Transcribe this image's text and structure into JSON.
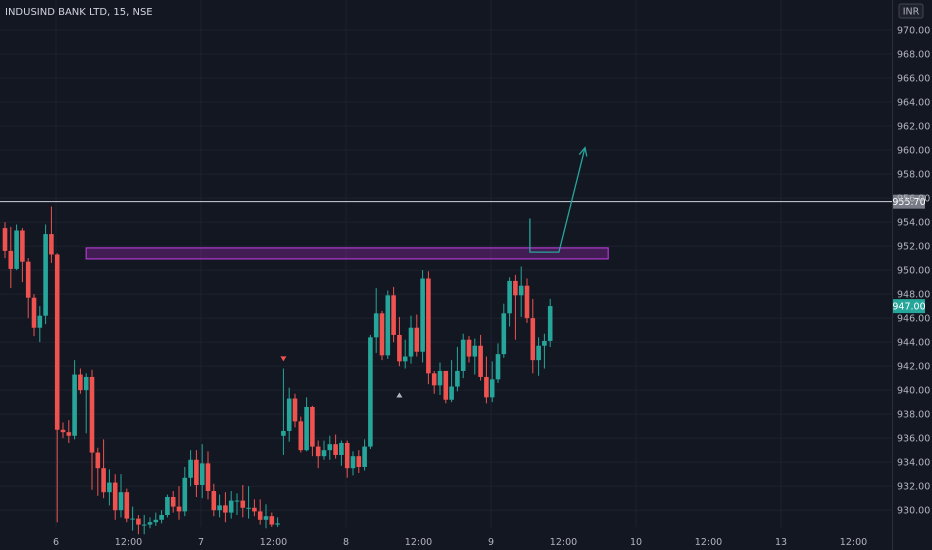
{
  "chart_data": {
    "type": "candlestick",
    "title": "INDUSIND BANK LTD, 15, NSE",
    "currency": "INR",
    "colors": {
      "background": "#131722",
      "up": "#26a69a",
      "down": "#ef5350",
      "grid": "#1e222d",
      "axis_text": "#b2b5be",
      "current_price_bg": "#26a69a",
      "horizontal_line": "#d1d4dc",
      "zone": "#9c27b0",
      "projection": "#26a69a"
    },
    "ylim": [
      928.6,
      972.5
    ],
    "y_ticks": [
      "930.00",
      "932.00",
      "934.00",
      "936.00",
      "938.00",
      "940.00",
      "942.00",
      "944.00",
      "946.00",
      "948.00",
      "950.00",
      "952.00",
      "954.00",
      "956.00",
      "958.00",
      "960.00",
      "962.00",
      "964.00",
      "966.00",
      "968.00",
      "970.00"
    ],
    "x_ticks": [
      "6",
      "12:00",
      "7",
      "12:00",
      "8",
      "12:00",
      "9",
      "12:00",
      "10",
      "12:00",
      "13",
      "12:00"
    ],
    "x_ticks_major": [
      "6",
      "7",
      "8",
      "9",
      "10",
      "13"
    ],
    "sessions": 6.0,
    "bars_per_session": 25,
    "horizontal_line_price": 955.7,
    "horizontal_line_label": "955.70",
    "current_price": 947.0,
    "current_price_label": "947.00",
    "zone": {
      "low": 951.1,
      "high": 951.6,
      "from_bar": 14,
      "to_bar": 104
    },
    "projection": [
      [
        90.5,
        954.3
      ],
      [
        90.5,
        951.5
      ],
      [
        95.5,
        951.5
      ],
      [
        100,
        960.2
      ]
    ],
    "markers": [
      {
        "bar": 48,
        "price": 942.4,
        "shape": "down-triangle",
        "color": "#ef5350"
      },
      {
        "bar": 68,
        "price": 939.8,
        "shape": "up-triangle",
        "color": "#b2b5be"
      }
    ],
    "candles": [
      [
        0,
        953.5,
        954.0,
        951.0,
        951.6
      ],
      [
        1,
        951.6,
        953.6,
        948.5,
        950.1
      ],
      [
        2,
        950.1,
        953.8,
        950.0,
        953.3
      ],
      [
        3,
        953.3,
        953.5,
        949.0,
        950.7
      ],
      [
        4,
        950.7,
        951.0,
        946.0,
        947.7
      ],
      [
        5,
        947.7,
        948.0,
        944.5,
        945.2
      ],
      [
        6,
        945.2,
        947.0,
        944.0,
        946.2
      ],
      [
        7,
        946.2,
        953.8,
        945.5,
        953.0
      ],
      [
        8,
        953.0,
        955.3,
        950.6,
        951.3
      ],
      [
        9,
        951.3,
        951.4,
        929.0,
        936.7
      ],
      [
        10,
        936.7,
        937.3,
        936.0,
        936.5
      ],
      [
        11,
        936.5,
        937.5,
        935.6,
        936.2
      ],
      [
        12,
        936.2,
        942.5,
        935.9,
        941.3
      ],
      [
        13,
        941.3,
        941.8,
        939.7,
        940.0
      ],
      [
        14,
        940.0,
        941.4,
        936.4,
        941.1
      ],
      [
        15,
        941.1,
        941.7,
        931.7,
        934.8
      ],
      [
        16,
        934.8,
        935.2,
        931.2,
        933.5
      ],
      [
        17,
        933.5,
        935.9,
        931.0,
        931.5
      ],
      [
        18,
        931.5,
        933.4,
        930.4,
        932.3
      ],
      [
        19,
        932.3,
        933.0,
        929.2,
        930.0
      ],
      [
        20,
        930.0,
        933.0,
        929.4,
        931.5
      ],
      [
        21,
        931.5,
        931.8,
        929.0,
        929.3
      ],
      [
        22,
        929.3,
        930.3,
        928.3,
        929.3
      ],
      [
        23,
        929.3,
        929.6,
        928.0,
        928.8
      ],
      [
        24,
        928.8,
        929.6,
        928.0,
        928.8
      ],
      [
        25,
        928.8,
        929.4,
        928.5,
        929.0
      ],
      [
        26,
        929.0,
        929.8,
        928.7,
        929.2
      ],
      [
        27,
        929.2,
        930.0,
        928.9,
        929.6
      ],
      [
        28,
        929.6,
        931.3,
        929.4,
        931.1
      ],
      [
        29,
        931.1,
        931.6,
        929.8,
        930.3
      ],
      [
        30,
        930.3,
        932.0,
        929.2,
        929.9
      ],
      [
        31,
        929.9,
        933.6,
        929.5,
        932.7
      ],
      [
        32,
        932.7,
        935.0,
        932.0,
        934.2
      ],
      [
        33,
        934.2,
        935.0,
        931.1,
        932.1
      ],
      [
        34,
        932.1,
        935.5,
        931.0,
        933.9
      ],
      [
        35,
        933.9,
        934.9,
        930.9,
        931.6
      ],
      [
        36,
        931.6,
        932.2,
        929.5,
        930.0
      ],
      [
        37,
        930.0,
        931.3,
        929.4,
        930.4
      ],
      [
        38,
        930.4,
        931.5,
        929.0,
        929.8
      ],
      [
        39,
        929.8,
        931.6,
        929.3,
        930.8
      ],
      [
        40,
        930.8,
        931.4,
        929.6,
        930.8
      ],
      [
        41,
        930.8,
        932.1,
        929.4,
        930.2
      ],
      [
        42,
        930.2,
        932.0,
        929.3,
        930.2
      ],
      [
        43,
        930.2,
        930.9,
        929.5,
        929.9
      ],
      [
        44,
        929.9,
        930.9,
        928.8,
        929.2
      ],
      [
        45,
        929.2,
        930.5,
        928.5,
        929.5
      ],
      [
        46,
        929.5,
        929.8,
        928.6,
        928.8
      ],
      [
        47,
        928.8,
        929.4,
        928.6,
        928.9
      ],
      [
        48,
        936.2,
        941.8,
        934.6,
        936.6
      ],
      [
        49,
        936.6,
        940.2,
        935.7,
        939.3
      ],
      [
        50,
        939.3,
        939.7,
        936.9,
        937.4
      ],
      [
        51,
        937.4,
        937.8,
        934.8,
        935.0
      ],
      [
        52,
        935.0,
        939.4,
        934.9,
        938.6
      ],
      [
        53,
        938.6,
        938.7,
        934.5,
        935.3
      ],
      [
        54,
        935.3,
        935.8,
        933.5,
        934.5
      ],
      [
        55,
        934.5,
        935.8,
        934.2,
        935.0
      ],
      [
        56,
        935.0,
        936.2,
        934.2,
        935.5
      ],
      [
        57,
        935.5,
        936.3,
        934.3,
        934.6
      ],
      [
        58,
        934.6,
        935.8,
        933.7,
        935.6
      ],
      [
        59,
        935.6,
        935.8,
        932.7,
        933.5
      ],
      [
        60,
        933.5,
        934.9,
        932.9,
        934.5
      ],
      [
        61,
        934.5,
        935.0,
        933.1,
        933.6
      ],
      [
        62,
        933.6,
        935.9,
        933.3,
        935.3
      ],
      [
        63,
        935.3,
        944.6,
        935.1,
        944.4
      ],
      [
        64,
        944.4,
        948.5,
        943.1,
        946.4
      ],
      [
        65,
        946.4,
        946.6,
        942.5,
        942.9
      ],
      [
        66,
        942.9,
        948.3,
        942.6,
        947.9
      ],
      [
        67,
        947.9,
        948.6,
        944.0,
        944.6
      ],
      [
        68,
        944.6,
        946.1,
        942.0,
        942.4
      ],
      [
        69,
        942.4,
        944.2,
        941.8,
        942.8
      ],
      [
        70,
        942.8,
        946.2,
        942.2,
        945.2
      ],
      [
        71,
        945.2,
        946.3,
        942.8,
        943.2
      ],
      [
        72,
        943.2,
        950.0,
        942.3,
        949.3
      ],
      [
        73,
        949.3,
        949.9,
        940.5,
        941.4
      ],
      [
        74,
        941.4,
        941.6,
        939.7,
        940.4
      ],
      [
        75,
        940.4,
        942.3,
        939.6,
        941.6
      ],
      [
        76,
        941.6,
        941.6,
        938.9,
        939.2
      ],
      [
        77,
        939.2,
        942.5,
        939.0,
        940.3
      ],
      [
        78,
        940.3,
        943.6,
        939.9,
        941.6
      ],
      [
        79,
        941.6,
        944.7,
        941.0,
        944.2
      ],
      [
        80,
        944.2,
        944.5,
        942.3,
        942.8
      ],
      [
        81,
        942.8,
        944.3,
        941.3,
        943.7
      ],
      [
        82,
        943.7,
        944.6,
        940.8,
        941.1
      ],
      [
        83,
        941.1,
        942.8,
        938.9,
        939.4
      ],
      [
        84,
        939.4,
        942.4,
        939.0,
        940.9
      ],
      [
        85,
        940.9,
        943.9,
        940.6,
        943.0
      ],
      [
        86,
        943.0,
        947.2,
        942.7,
        946.4
      ],
      [
        87,
        946.4,
        949.4,
        945.3,
        949.1
      ],
      [
        88,
        949.1,
        949.6,
        944.2,
        947.9
      ],
      [
        89,
        947.9,
        950.3,
        946.1,
        948.7
      ],
      [
        90,
        948.7,
        949.3,
        945.6,
        946.0
      ],
      [
        91,
        946.0,
        947.6,
        941.4,
        942.5
      ],
      [
        92,
        942.5,
        944.4,
        941.2,
        943.7
      ],
      [
        93,
        943.7,
        944.7,
        941.8,
        944.1
      ],
      [
        94,
        944.1,
        947.6,
        943.6,
        947.0
      ]
    ]
  }
}
